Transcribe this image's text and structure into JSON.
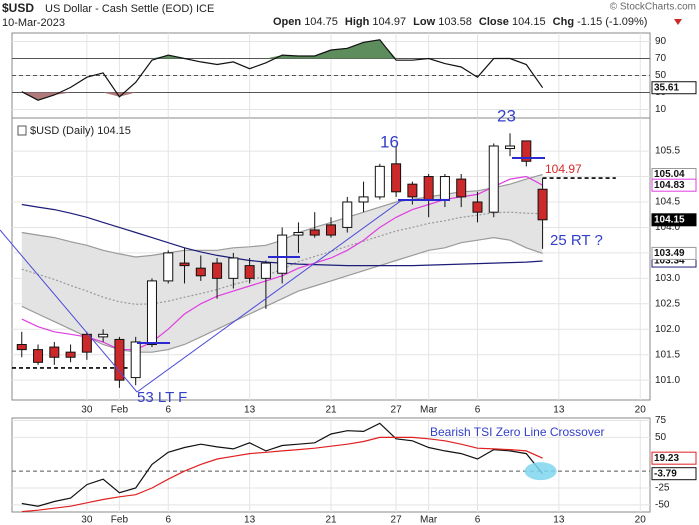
{
  "header": {
    "symbol": "$USD",
    "name": "US Dollar - Cash Settle (EOD) ICE",
    "date": "10-Mar-2023",
    "copyright": "© StockCharts.com",
    "open_label": "Open",
    "open": 104.75,
    "high_label": "High",
    "high": 104.97,
    "low_label": "Low",
    "low": 103.58,
    "close_label": "Close",
    "close": 104.15,
    "chg_label": "Chg",
    "chg": -1.15,
    "chg_pct": "(-1.09%)"
  },
  "chart_data": [
    {
      "type": "line",
      "grid": true,
      "x_axis_labels": false,
      "xlim": [
        -0.6,
        38.6
      ],
      "ylim": [
        0,
        100
      ],
      "yticks": [
        10,
        30,
        50,
        70,
        90
      ],
      "xticks": [
        {
          "value": 4,
          "label": "30"
        },
        {
          "value": 6,
          "label": "Feb"
        },
        {
          "value": 9,
          "label": "6"
        },
        {
          "value": 14,
          "label": "13"
        },
        {
          "value": 19,
          "label": "21"
        },
        {
          "value": 23,
          "label": "27"
        },
        {
          "value": 25,
          "label": "Mar"
        },
        {
          "value": 28,
          "label": "6"
        },
        {
          "value": 33,
          "label": "13"
        },
        {
          "value": 38,
          "label": "20"
        }
      ],
      "x": [
        0,
        1,
        2,
        3,
        4,
        5,
        6,
        7,
        8,
        9,
        10,
        11,
        12,
        13,
        14,
        15,
        16,
        17,
        18,
        19,
        20,
        21,
        22,
        23,
        24,
        25,
        26,
        27,
        28,
        29,
        30,
        31,
        32
      ],
      "series": [
        {
          "color": "#111111",
          "label_box": true,
          "fill_above": 70,
          "fill_above_color": "#5d8c5d",
          "fill_below": 30,
          "fill_below_color": "#b07a7a",
          "values": [
            31,
            21,
            27,
            36,
            48,
            53,
            25,
            42,
            68,
            74,
            70,
            66,
            63,
            66,
            58,
            65,
            74,
            73,
            73,
            80,
            82,
            89,
            92,
            68,
            68,
            70,
            64,
            60,
            48,
            70,
            70,
            63,
            35.61
          ]
        }
      ],
      "levels": [
        {
          "value": 70
        },
        {
          "value": 50,
          "dashed": true
        },
        {
          "value": 30
        }
      ]
    },
    {
      "type": "candlestick",
      "title": "$USD (Daily) 104.15",
      "grid": true,
      "x_axis_labels": true,
      "xlim": [
        -0.6,
        38.6
      ],
      "ylim": [
        100.61,
        106.15
      ],
      "xticks": [
        {
          "value": 4,
          "label": "30"
        },
        {
          "value": 6,
          "label": "Feb"
        },
        {
          "value": 9,
          "label": "6"
        },
        {
          "value": 14,
          "label": "13"
        },
        {
          "value": 19,
          "label": "21"
        },
        {
          "value": 23,
          "label": "27"
        },
        {
          "value": 25,
          "label": "Mar"
        },
        {
          "value": 28,
          "label": "6"
        },
        {
          "value": 33,
          "label": "13"
        },
        {
          "value": 38,
          "label": "20"
        }
      ],
      "yticks": [
        {
          "value": 101,
          "label": "101.0"
        },
        101.5,
        {
          "value": 102,
          "label": "102.0"
        },
        102.5,
        {
          "value": 103,
          "label": "103.0"
        },
        103.5,
        {
          "value": 104,
          "label": "104.0"
        },
        104.5,
        {
          "value": 105,
          "label": "105.0"
        },
        105.5
      ],
      "x": [
        0,
        1,
        2,
        3,
        4,
        5,
        6,
        7,
        8,
        9,
        10,
        11,
        12,
        13,
        14,
        15,
        16,
        17,
        18,
        19,
        20,
        21,
        22,
        23,
        24,
        25,
        26,
        27,
        28,
        29,
        30,
        31,
        32
      ],
      "open": [
        101.7,
        101.6,
        101.65,
        101.55,
        101.9,
        101.85,
        101.8,
        101.05,
        101.7,
        102.95,
        103.3,
        103.2,
        103.3,
        103.0,
        103.25,
        103.0,
        103.1,
        103.85,
        103.95,
        104.05,
        104.0,
        104.5,
        104.6,
        105.25,
        104.85,
        105.0,
        104.55,
        104.95,
        104.5,
        104.3,
        105.55,
        105.7,
        104.75
      ],
      "high": [
        101.95,
        101.7,
        101.75,
        101.7,
        101.95,
        102.0,
        101.85,
        101.85,
        103.0,
        103.55,
        103.6,
        103.45,
        103.4,
        103.5,
        103.4,
        103.35,
        104.0,
        104.1,
        104.3,
        104.2,
        104.6,
        104.9,
        105.25,
        105.6,
        104.9,
        105.05,
        105.05,
        105.05,
        104.7,
        105.65,
        105.85,
        105.7,
        104.97
      ],
      "low": [
        101.45,
        101.3,
        101.3,
        101.35,
        101.4,
        101.75,
        100.85,
        100.9,
        101.65,
        102.9,
        102.9,
        102.95,
        102.6,
        102.8,
        102.9,
        102.4,
        102.9,
        103.5,
        103.8,
        103.8,
        103.9,
        104.3,
        104.55,
        104.6,
        104.45,
        104.2,
        104.4,
        104.4,
        104.1,
        104.2,
        105.4,
        105.2,
        103.58
      ],
      "close": [
        101.6,
        101.35,
        101.45,
        101.45,
        101.55,
        101.9,
        101.0,
        101.75,
        102.95,
        103.5,
        103.25,
        103.05,
        103.0,
        103.4,
        103.0,
        103.3,
        103.85,
        103.9,
        103.85,
        103.85,
        104.5,
        104.6,
        105.2,
        104.7,
        104.6,
        104.55,
        105.0,
        104.6,
        104.3,
        105.6,
        105.6,
        105.3,
        104.15
      ],
      "up_color": "#ffffff",
      "down_color": "#cc2a2a",
      "band": {
        "color": "#e3e3e3",
        "edge_color": "#9a9a9a",
        "upper": [
          103.9,
          103.85,
          103.8,
          103.72,
          103.65,
          103.55,
          103.48,
          103.42,
          103.45,
          103.5,
          103.55,
          103.55,
          103.55,
          103.6,
          103.62,
          103.65,
          103.75,
          103.9,
          104.0,
          104.1,
          104.2,
          104.3,
          104.4,
          104.5,
          104.55,
          104.6,
          104.65,
          104.7,
          104.72,
          104.78,
          104.85,
          104.95,
          105.04
        ],
        "lower": [
          102.45,
          102.3,
          102.15,
          102.0,
          101.85,
          101.7,
          101.6,
          101.55,
          101.55,
          101.6,
          101.7,
          101.85,
          102.0,
          102.15,
          102.3,
          102.45,
          102.6,
          102.75,
          102.85,
          102.95,
          103.05,
          103.15,
          103.25,
          103.35,
          103.45,
          103.55,
          103.6,
          103.7,
          103.75,
          103.8,
          103.75,
          103.6,
          103.49
        ]
      },
      "overlays": [
        {
          "color": "#999999",
          "dashed": true,
          "values": [
            103.18,
            103.08,
            102.98,
            102.86,
            102.75,
            102.63,
            102.54,
            102.49,
            102.5,
            102.55,
            102.63,
            102.7,
            102.78,
            102.88,
            102.96,
            103.05,
            103.18,
            103.33,
            103.43,
            103.53,
            103.63,
            103.73,
            103.83,
            103.93,
            104.0,
            104.08,
            104.13,
            104.2,
            104.24,
            104.29,
            104.3,
            104.28,
            104.27
          ]
        },
        {
          "color": "#1c1c7a",
          "label_box": true,
          "values": [
            104.45,
            104.4,
            104.35,
            104.28,
            104.2,
            104.1,
            104.0,
            103.9,
            103.8,
            103.7,
            103.6,
            103.52,
            103.45,
            103.4,
            103.35,
            103.32,
            103.3,
            103.28,
            103.27,
            103.26,
            103.25,
            103.25,
            103.25,
            103.25,
            103.25,
            103.26,
            103.27,
            103.28,
            103.29,
            103.3,
            103.31,
            103.32,
            103.34
          ]
        },
        {
          "color": "#e03ee0",
          "label_box": true,
          "values": [
            102.2,
            102.05,
            101.95,
            101.9,
            101.85,
            101.75,
            101.6,
            101.6,
            101.75,
            102.0,
            102.3,
            102.5,
            102.65,
            102.75,
            102.85,
            102.95,
            103.05,
            103.2,
            103.3,
            103.4,
            103.55,
            103.75,
            104.0,
            104.2,
            104.35,
            104.45,
            104.55,
            104.6,
            104.65,
            104.8,
            104.95,
            105.0,
            104.83
          ]
        }
      ],
      "levels": [
        {
          "value": 104.97,
          "dashed": true,
          "span": [
            32,
            36.5
          ]
        },
        {
          "value": 101.24,
          "dashed": true,
          "span": [
            -0.6,
            6.5
          ]
        }
      ],
      "annotations": [
        "16",
        "23",
        "25 RT ?",
        "53 LT F"
      ]
    },
    {
      "type": "line",
      "grid": true,
      "x_axis_labels": true,
      "xlim": [
        -0.6,
        38.6
      ],
      "ylim": [
        -60.6,
        78.8
      ],
      "yticks": [
        -50,
        -25,
        50,
        75
      ],
      "xticks": [
        {
          "value": 4,
          "label": "30"
        },
        {
          "value": 6,
          "label": "Feb"
        },
        {
          "value": 9,
          "label": "6"
        },
        {
          "value": 14,
          "label": "13"
        },
        {
          "value": 19,
          "label": "21"
        },
        {
          "value": 23,
          "label": "27"
        },
        {
          "value": 25,
          "label": "Mar"
        },
        {
          "value": 28,
          "label": "6"
        },
        {
          "value": 33,
          "label": "13"
        },
        {
          "value": 38,
          "label": "20"
        }
      ],
      "x": [
        0,
        1,
        2,
        3,
        4,
        5,
        6,
        7,
        8,
        9,
        10,
        11,
        12,
        13,
        14,
        15,
        16,
        17,
        18,
        19,
        20,
        21,
        22,
        23,
        24,
        25,
        26,
        27,
        28,
        29,
        30,
        31,
        32
      ],
      "series": [
        {
          "color": "#111111",
          "label_box": true,
          "values": [
            -48,
            -52,
            -45,
            -40,
            -20,
            -12,
            -32,
            -25,
            10,
            28,
            35,
            40,
            36,
            33,
            42,
            30,
            38,
            40,
            42,
            55,
            60,
            59,
            71,
            48,
            45,
            35,
            30,
            26,
            18,
            32,
            30,
            26,
            -3.79
          ]
        },
        {
          "color": "#e02020",
          "label_box": true,
          "values": [
            -60,
            -58,
            -55,
            -52,
            -47,
            -42,
            -38,
            -35,
            -25,
            -12,
            0,
            10,
            18,
            22,
            26,
            28,
            30,
            32,
            34,
            37,
            40,
            44,
            50,
            50,
            50,
            48,
            45,
            40,
            34,
            33,
            32,
            30,
            19.23
          ]
        }
      ],
      "levels": [
        {
          "value": 0,
          "dashed": true
        }
      ],
      "annotation": "Bearish TSI Zero Line Crossover",
      "highlight_color": "#7fd6ee"
    }
  ]
}
